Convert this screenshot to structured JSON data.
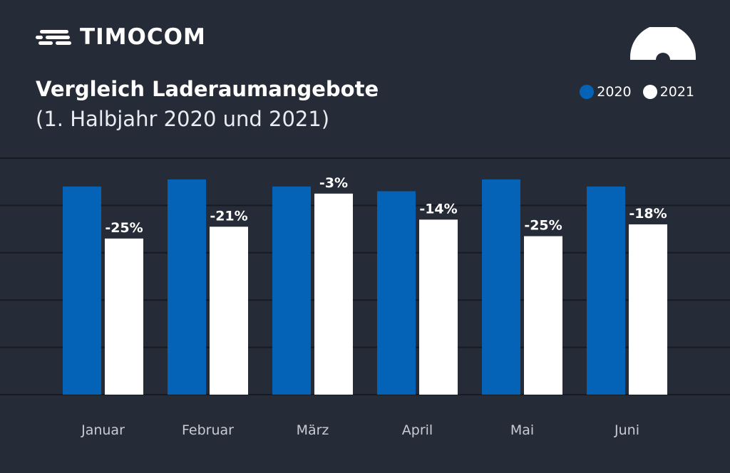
{
  "brand": {
    "name": "TIMOCOM",
    "logo_icon": "speed-lines-logo-icon",
    "corner_icon": "gauge-icon"
  },
  "colors": {
    "background": "#262c37",
    "series_2020": "#0563b7",
    "series_2021": "#ffffff",
    "gridline": "#161a21"
  },
  "chart_data": {
    "type": "bar",
    "title": "Vergleich Laderaumangebote",
    "subtitle": "(1. Halbjahr 2020 und 2021)",
    "categories": [
      "Januar",
      "Februar",
      "März",
      "April",
      "Mai",
      "Juni"
    ],
    "series": [
      {
        "name": "2020",
        "values": [
          88,
          91,
          88,
          86,
          91,
          88
        ]
      },
      {
        "name": "2021",
        "values": [
          66,
          71,
          85,
          74,
          67,
          72
        ]
      }
    ],
    "data_labels": [
      "-25%",
      "-21%",
      "-3%",
      "-14%",
      "-25%",
      "-18%"
    ],
    "ylim": [
      0,
      100
    ],
    "grid": true,
    "legend_position": "top-right"
  }
}
